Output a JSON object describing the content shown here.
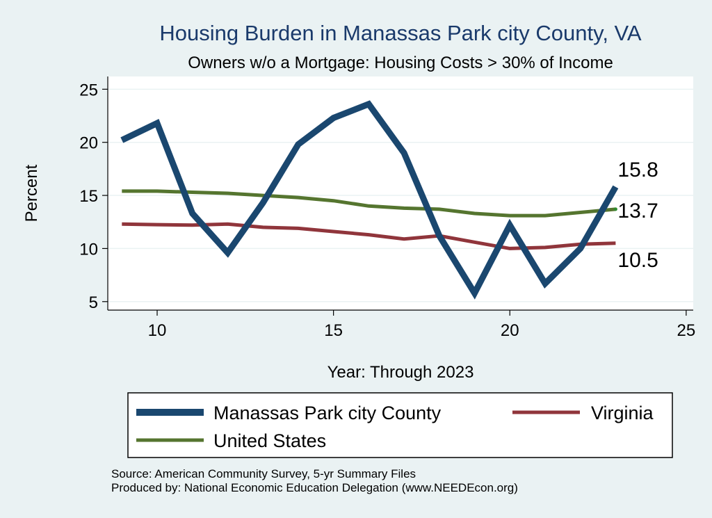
{
  "chart_data": {
    "type": "line",
    "title": "Housing Burden in Manassas Park city County, VA",
    "subtitle": "Owners w/o a Mortgage: Housing Costs > 30% of Income",
    "xlabel": "Year: Through 2023",
    "ylabel": "Percent",
    "xlim": [
      8.6,
      25.2
    ],
    "ylim": [
      4.2,
      26.2
    ],
    "xticks": [
      10,
      15,
      20,
      25
    ],
    "yticks": [
      5,
      10,
      15,
      20,
      25
    ],
    "grid": true,
    "x": [
      9,
      10,
      11,
      12,
      13,
      14,
      15,
      16,
      17,
      18,
      19,
      20,
      21,
      22,
      23
    ],
    "series": [
      {
        "name": "Manassas Park city County",
        "color": "#1a476f",
        "values": [
          20.2,
          21.8,
          13.3,
          9.6,
          14.3,
          19.8,
          22.3,
          23.6,
          19.0,
          11.2,
          5.8,
          12.2,
          6.7,
          10.0,
          15.8
        ],
        "end_label": "15.8"
      },
      {
        "name": "Virginia",
        "color": "#90353b",
        "values": [
          12.3,
          12.25,
          12.2,
          12.3,
          12.0,
          11.9,
          11.6,
          11.3,
          10.9,
          11.2,
          10.6,
          10.0,
          10.1,
          10.4,
          10.5
        ],
        "end_label": "10.5"
      },
      {
        "name": "United States",
        "color": "#55752f",
        "values": [
          15.4,
          15.4,
          15.3,
          15.2,
          15.0,
          14.8,
          14.5,
          14.0,
          13.8,
          13.7,
          13.3,
          13.1,
          13.1,
          13.4,
          13.7
        ],
        "end_label": "13.7"
      }
    ],
    "legend_position": "bottom"
  },
  "notes": {
    "source": "Source: American Community Survey, 5-yr Summary Files",
    "produced": "Produced by: National Economic Education Delegation (www.NEEDEcon.org)"
  }
}
